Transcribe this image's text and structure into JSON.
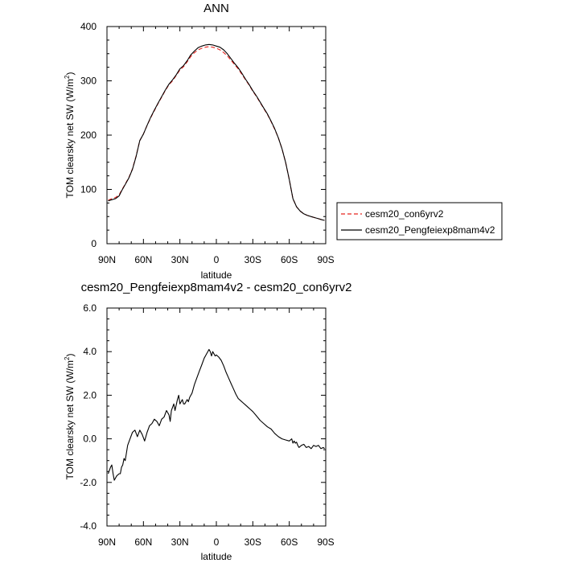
{
  "chart_data": [
    {
      "type": "line",
      "title": "ANN",
      "xlabel": "latitude",
      "ylabel": "TOM clearsky net SW (W/m",
      "ylabel_sup": "2",
      "ylabel_close": ")",
      "xlim": [
        90,
        -90
      ],
      "ylim": [
        0,
        400
      ],
      "xticks": [
        90,
        60,
        30,
        0,
        -30,
        -60,
        -90
      ],
      "xtick_labels": [
        "90N",
        "60N",
        "30N",
        "0",
        "30S",
        "60S",
        "90S"
      ],
      "yticks": [
        0,
        100,
        200,
        300,
        400
      ],
      "ytick_labels": [
        "0",
        "100",
        "200",
        "300",
        "400"
      ],
      "legend": "right",
      "series": [
        {
          "name": "cesm20_con6yrv2",
          "color": "#e8241f",
          "dash": "dashed",
          "x": [
            89,
            86,
            83,
            80,
            78,
            75,
            72,
            69,
            66,
            63,
            60,
            57,
            54,
            51,
            48,
            45,
            42,
            39,
            36,
            33,
            30,
            27,
            24,
            21,
            18,
            15,
            12,
            9,
            6,
            3,
            0,
            -3,
            -6,
            -9,
            -12,
            -15,
            -18,
            -21,
            -24,
            -27,
            -30,
            -33,
            -36,
            -39,
            -42,
            -45,
            -48,
            -51,
            -54,
            -57,
            -60,
            -63,
            -66,
            -69,
            -72,
            -75,
            -78,
            -81,
            -84,
            -87,
            -89
          ],
          "y": [
            80,
            83,
            85,
            90,
            98,
            110,
            122,
            138,
            162,
            190,
            202,
            218,
            232,
            245,
            258,
            270,
            282,
            293,
            300,
            310,
            320,
            326,
            335,
            345,
            352,
            357,
            360,
            362,
            363,
            362,
            360,
            357,
            352,
            346,
            338,
            330,
            322,
            312,
            302,
            292,
            281,
            271,
            260,
            249,
            238,
            225,
            211,
            195,
            175,
            150,
            118,
            83,
            68,
            60,
            55,
            52,
            50,
            48,
            46,
            44,
            43
          ]
        },
        {
          "name": "cesm20_Pengfeiexp8mam4v2",
          "color": "#000000",
          "dash": "solid",
          "x": [
            89,
            86,
            83,
            80,
            78,
            75,
            72,
            69,
            66,
            63,
            60,
            57,
            54,
            51,
            48,
            45,
            42,
            39,
            36,
            33,
            30,
            27,
            24,
            21,
            18,
            15,
            12,
            9,
            6,
            3,
            0,
            -3,
            -6,
            -9,
            -12,
            -15,
            -18,
            -21,
            -24,
            -27,
            -30,
            -33,
            -36,
            -39,
            -42,
            -45,
            -48,
            -51,
            -54,
            -57,
            -60,
            -63,
            -66,
            -69,
            -72,
            -75,
            -78,
            -81,
            -84,
            -87,
            -89
          ],
          "y": [
            79,
            81,
            83,
            88,
            97,
            109,
            121,
            137,
            161,
            190,
            202,
            218,
            233,
            246,
            259,
            271,
            283,
            294,
            302,
            311,
            322,
            328,
            337,
            348,
            355,
            361,
            364,
            366,
            367,
            366,
            364,
            362,
            357,
            350,
            341,
            332,
            324,
            314,
            303,
            293,
            282,
            272,
            261,
            250,
            239,
            226,
            212,
            195,
            175,
            150,
            118,
            83,
            68,
            60,
            55,
            52,
            50,
            48,
            46,
            44,
            43
          ]
        }
      ]
    },
    {
      "type": "line",
      "title": "cesm20_Pengfeiexp8mam4v2 - cesm20_con6yrv2",
      "xlabel": "latitude",
      "ylabel": "TOM clearsky net SW (W/m",
      "ylabel_sup": "2",
      "ylabel_close": ")",
      "xlim": [
        90,
        -90
      ],
      "ylim": [
        -4,
        6
      ],
      "xticks": [
        90,
        60,
        30,
        0,
        -30,
        -60,
        -90
      ],
      "xtick_labels": [
        "90N",
        "60N",
        "30N",
        "0",
        "30S",
        "60S",
        "90S"
      ],
      "yticks": [
        -4,
        -2,
        0,
        2,
        4,
        6
      ],
      "ytick_labels": [
        "-4.0",
        "-2.0",
        "0.0",
        "2.0",
        "4.0",
        "6.0"
      ],
      "series": [
        {
          "color": "#000000",
          "x": [
            89,
            87,
            86,
            85,
            84,
            83,
            82,
            80,
            79,
            78,
            77,
            76,
            75,
            73,
            71,
            69,
            67,
            65,
            63,
            61,
            59,
            57,
            55,
            53,
            51,
            49,
            47,
            45,
            43,
            41,
            39,
            38,
            37,
            35,
            34,
            32,
            31,
            30,
            29,
            28,
            27,
            26,
            25,
            24,
            23,
            22,
            20,
            18,
            16,
            14,
            12,
            10,
            8,
            6,
            5,
            4,
            3,
            2,
            1,
            0,
            -2,
            -4,
            -6,
            -8,
            -10,
            -12,
            -14,
            -16,
            -18,
            -20,
            -22,
            -24,
            -26,
            -28,
            -30,
            -33,
            -36,
            -39,
            -42,
            -45,
            -48,
            -51,
            -54,
            -57,
            -60,
            -62,
            -63,
            -64,
            -65,
            -66,
            -67,
            -68,
            -70,
            -72,
            -74,
            -76,
            -78,
            -80,
            -82,
            -84,
            -86,
            -88,
            -89
          ],
          "y": [
            -1.6,
            -1.3,
            -1.2,
            -1.6,
            -1.9,
            -1.8,
            -1.7,
            -1.6,
            -1.6,
            -1.3,
            -1.2,
            -0.9,
            -1.0,
            -0.3,
            0.0,
            0.3,
            0.4,
            0.1,
            0.4,
            0.2,
            -0.1,
            0.3,
            0.6,
            0.7,
            0.9,
            0.8,
            0.6,
            0.9,
            1.0,
            1.3,
            1.1,
            0.8,
            1.3,
            1.6,
            1.3,
            1.8,
            2.0,
            1.6,
            1.7,
            1.8,
            1.6,
            1.6,
            1.7,
            1.8,
            1.7,
            1.9,
            2.1,
            2.5,
            2.8,
            3.1,
            3.4,
            3.7,
            3.9,
            4.1,
            4.0,
            3.8,
            4.0,
            3.9,
            3.8,
            3.85,
            3.75,
            3.6,
            3.35,
            3.05,
            2.8,
            2.55,
            2.3,
            2.05,
            1.85,
            1.75,
            1.65,
            1.55,
            1.45,
            1.35,
            1.25,
            1.05,
            0.85,
            0.7,
            0.55,
            0.45,
            0.25,
            0.1,
            0.0,
            -0.05,
            -0.1,
            0.0,
            -0.2,
            -0.1,
            -0.2,
            -0.15,
            -0.3,
            -0.4,
            -0.3,
            -0.25,
            -0.4,
            -0.35,
            -0.45,
            -0.3,
            -0.35,
            -0.3,
            -0.45,
            -0.4,
            -0.45
          ]
        }
      ]
    }
  ]
}
